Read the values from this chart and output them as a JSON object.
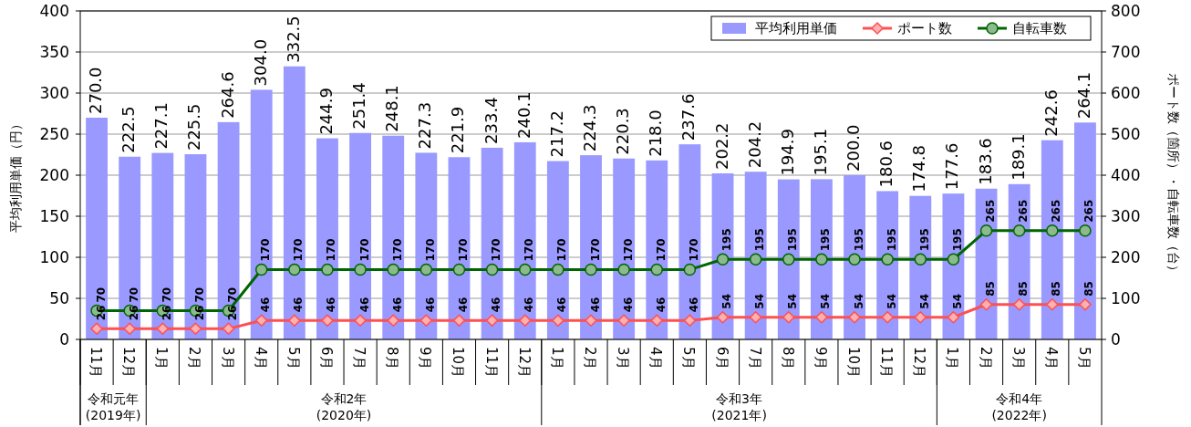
{
  "chart_data": {
    "type": "bar",
    "x": [
      "2019-11",
      "2019-12",
      "2020-01",
      "2020-02",
      "2020-03",
      "2020-04",
      "2020-05",
      "2020-06",
      "2020-07",
      "2020-08",
      "2020-09",
      "2020-10",
      "2020-11",
      "2020-12",
      "2021-01",
      "2021-02",
      "2021-03",
      "2021-04",
      "2021-05",
      "2021-06",
      "2021-07",
      "2021-08",
      "2021-09",
      "2021-10",
      "2021-11",
      "2021-12",
      "2022-01",
      "2022-02",
      "2022-03",
      "2022-04",
      "2022-05"
    ],
    "xlim": [
      "2019-10-16",
      "2022-05-16"
    ],
    "xticks": [
      {
        "value": "2019-11",
        "label": "11月"
      },
      {
        "value": "2019-12",
        "label": "12月"
      },
      {
        "value": "2020-01",
        "label": "1月"
      },
      {
        "value": "2020-02",
        "label": "2月"
      },
      {
        "value": "2020-03",
        "label": "3月"
      },
      {
        "value": "2020-04",
        "label": "4月"
      },
      {
        "value": "2020-05",
        "label": "5月"
      },
      {
        "value": "2020-06",
        "label": "6月"
      },
      {
        "value": "2020-07",
        "label": "7月"
      },
      {
        "value": "2020-08",
        "label": "8月"
      },
      {
        "value": "2020-09",
        "label": "9月"
      },
      {
        "value": "2020-10",
        "label": "10月"
      },
      {
        "value": "2020-11",
        "label": "11月"
      },
      {
        "value": "2020-12",
        "label": "12月"
      },
      {
        "value": "2021-01",
        "label": "1月"
      },
      {
        "value": "2021-02",
        "label": "2月"
      },
      {
        "value": "2021-03",
        "label": "3月"
      },
      {
        "value": "2021-04",
        "label": "4月"
      },
      {
        "value": "2021-05",
        "label": "5月"
      },
      {
        "value": "2021-06",
        "label": "6月"
      },
      {
        "value": "2021-07",
        "label": "7月"
      },
      {
        "value": "2021-08",
        "label": "8月"
      },
      {
        "value": "2021-09",
        "label": "9月"
      },
      {
        "value": "2021-10",
        "label": "10月"
      },
      {
        "value": "2021-11",
        "label": "11月"
      },
      {
        "value": "2021-12",
        "label": "12月"
      },
      {
        "value": "2022-01",
        "label": "1月"
      },
      {
        "value": "2022-02",
        "label": "2月"
      },
      {
        "value": "2022-03",
        "label": "3月"
      },
      {
        "value": "2022-04",
        "label": "4月"
      },
      {
        "value": "2022-05",
        "label": "5月"
      }
    ],
    "series": [
      {
        "name": "平均利用単価",
        "color": "#9999ff",
        "values": [
          270.0,
          222.5,
          227.1,
          225.5,
          264.6,
          304.0,
          332.5,
          244.9,
          251.4,
          248.1,
          227.3,
          221.9,
          233.4,
          240.1,
          217.2,
          224.3,
          220.3,
          218.0,
          237.6,
          202.2,
          204.2,
          194.9,
          195.1,
          200.0,
          180.6,
          174.8,
          177.6,
          183.6,
          189.1,
          242.6,
          264.1
        ],
        "value_labels": [
          "270.0",
          "222.5",
          "227.1",
          "225.5",
          "264.6",
          "304.0",
          "332.5",
          "244.9",
          "251.4",
          "248.1",
          "227.3",
          "221.9",
          "233.4",
          "240.1",
          "217.2",
          "224.3",
          "220.3",
          "218.0",
          "237.6",
          "202.2",
          "204.2",
          "194.9",
          "195.1",
          "200.0",
          "180.6",
          "174.8",
          "177.6",
          "183.6",
          "189.1",
          "242.6",
          "264.1"
        ]
      },
      {
        "name": "ポート数",
        "type": "line",
        "axis": "y2",
        "color": "#ff5050",
        "marker": "diamond",
        "values": [
          26,
          26,
          26,
          26,
          26,
          46,
          46,
          46,
          46,
          46,
          46,
          46,
          46,
          46,
          46,
          46,
          46,
          46,
          46,
          54,
          54,
          54,
          54,
          54,
          54,
          54,
          54,
          85,
          85,
          85,
          85
        ]
      },
      {
        "name": "自転車数",
        "type": "line",
        "axis": "y2",
        "color": "#006600",
        "marker": "circle",
        "values": [
          70,
          70,
          70,
          70,
          70,
          170,
          170,
          170,
          170,
          170,
          170,
          170,
          170,
          170,
          170,
          170,
          170,
          170,
          170,
          195,
          195,
          195,
          195,
          195,
          195,
          195,
          195,
          265,
          265,
          265,
          265
        ]
      }
    ],
    "ylim": [
      0,
      400
    ],
    "yticks": [
      0,
      50,
      100,
      150,
      200,
      250,
      300,
      350,
      400
    ],
    "y2lim": [
      0,
      800
    ],
    "y2ticks": [
      0,
      100,
      200,
      300,
      400,
      500,
      600,
      700,
      800
    ],
    "ylabel": "平均利用単価（円）",
    "y2label": "ポート数（箇所）・自転車数（台）",
    "grid": "y",
    "legend": "top right",
    "data_labels": true,
    "annotations": [
      "令和元年\n(2019年)",
      "令和2年\n(2020年)",
      "令和3年\n(2021年)",
      "令和4年\n(2022年)"
    ]
  }
}
